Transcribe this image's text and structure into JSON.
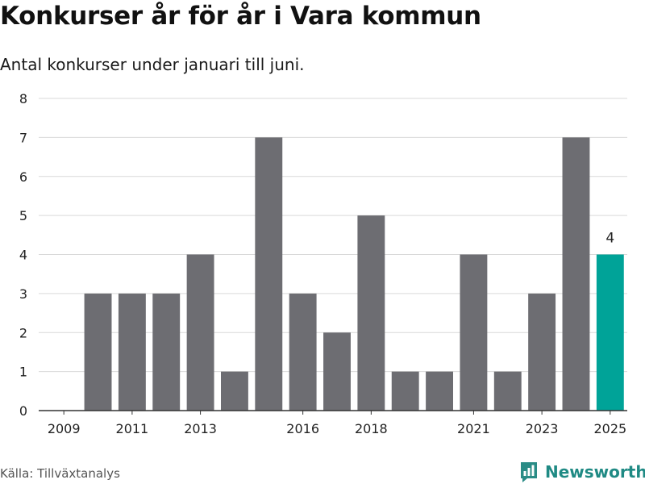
{
  "title": "Konkurser år för år i Vara kommun",
  "subtitle": "Antal konkurser under januari till juni.",
  "source": "Källa: Tillväxtanalys",
  "brand": {
    "name": "Newsworthy",
    "icon": "newsworthy-logo-icon",
    "color": "#2a8c86"
  },
  "colors": {
    "bar": "#6d6d72",
    "highlight": "#00a398",
    "grid": "#d9d9d9",
    "axis": "#333333",
    "tick_text": "#222222"
  },
  "chart_data": {
    "type": "bar",
    "title": "Konkurser år för år i Vara kommun",
    "subtitle": "Antal konkurser under januari till juni.",
    "categories": [
      2009,
      2010,
      2011,
      2012,
      2013,
      2014,
      2015,
      2016,
      2017,
      2018,
      2019,
      2020,
      2021,
      2022,
      2023,
      2024,
      2025
    ],
    "values": [
      0,
      3,
      3,
      3,
      4,
      1,
      7,
      3,
      2,
      5,
      1,
      1,
      4,
      1,
      3,
      7,
      4
    ],
    "x_tick_labels": [
      "2009",
      "2011",
      "2013",
      "2016",
      "2018",
      "2021",
      "2023",
      "2025"
    ],
    "y_ticks": [
      0,
      1,
      2,
      3,
      4,
      5,
      6,
      7,
      8
    ],
    "ylim": [
      0,
      8
    ],
    "highlight_category": 2025,
    "data_labels": [
      {
        "category": 2025,
        "text": "4"
      }
    ],
    "grid": true,
    "xlabel": "",
    "ylabel": ""
  }
}
